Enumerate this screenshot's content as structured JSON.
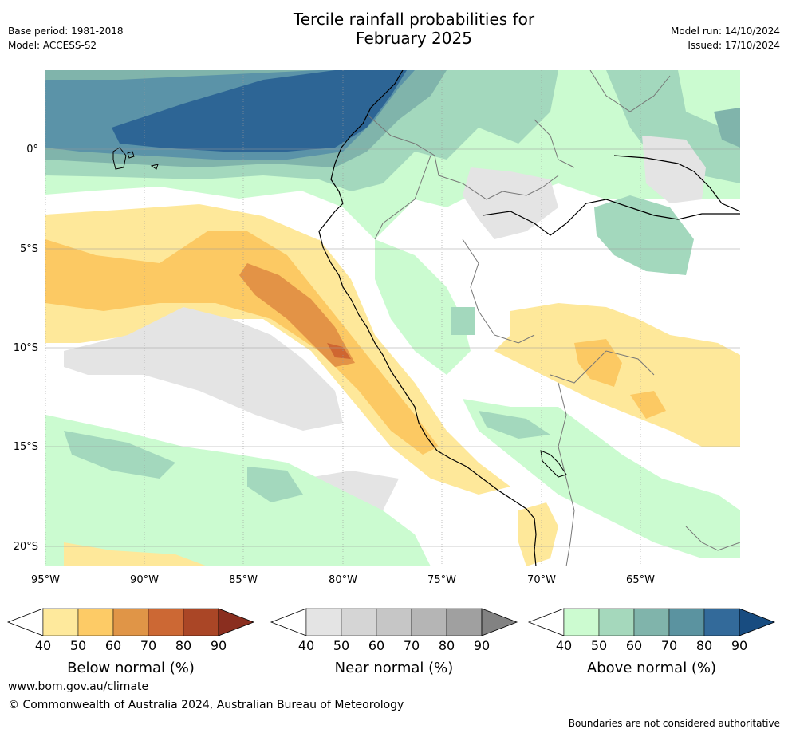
{
  "header": {
    "title_line1": "Tercile rainfall probabilities for",
    "title_line2": "February 2025",
    "base_period": "Base period: 1981-2018",
    "model": "Model: ACCESS-S2",
    "model_run": "Model run: 14/10/2024",
    "issued": "Issued: 17/10/2024"
  },
  "map": {
    "lon_labels": [
      "95°W",
      "90°W",
      "85°W",
      "80°W",
      "75°W",
      "70°W",
      "65°W"
    ],
    "lat_labels": [
      "0°",
      "5°S",
      "10°S",
      "15°S",
      "20°S"
    ],
    "grid": true,
    "colors": {
      "ocean_blue_dark": "#2d6595",
      "ocean_blue": "#5b93a8",
      "teal": "#80b4ab",
      "green_mid": "#a3d8bd",
      "green_light": "#cbfbd0",
      "yellow": "#fee89a",
      "orange_light": "#fcc963",
      "orange": "#e39346",
      "red_orange": "#cf6631",
      "grey": "#e4e4e4",
      "coast": "#000000",
      "border": "#777777"
    }
  },
  "colorbars": [
    {
      "title": "Below normal (%)",
      "ticks": [
        "40",
        "50",
        "60",
        "70",
        "80",
        "90"
      ],
      "colors": [
        "#fee99c",
        "#fdcb66",
        "#e09547",
        "#cc6834",
        "#aa4626",
        "#8a2e1f"
      ]
    },
    {
      "title": "Near normal (%)",
      "ticks": [
        "40",
        "50",
        "60",
        "70",
        "80",
        "90"
      ],
      "colors": [
        "#e4e4e4",
        "#d5d5d5",
        "#c6c6c6",
        "#b5b5b5",
        "#a0a0a0",
        "#828282"
      ]
    },
    {
      "title": "Above normal (%)",
      "ticks": [
        "40",
        "50",
        "60",
        "70",
        "80",
        "90"
      ],
      "colors": [
        "#ccfbd0",
        "#a5d8bc",
        "#80b4ab",
        "#5b93a0",
        "#336a9a",
        "#184c80"
      ]
    }
  ],
  "footer": {
    "url": "www.bom.gov.au/climate",
    "copyright": "© Commonwealth of Australia 2024, Australian Bureau of Meteorology",
    "disclaimer": "Boundaries are not considered authoritative"
  }
}
